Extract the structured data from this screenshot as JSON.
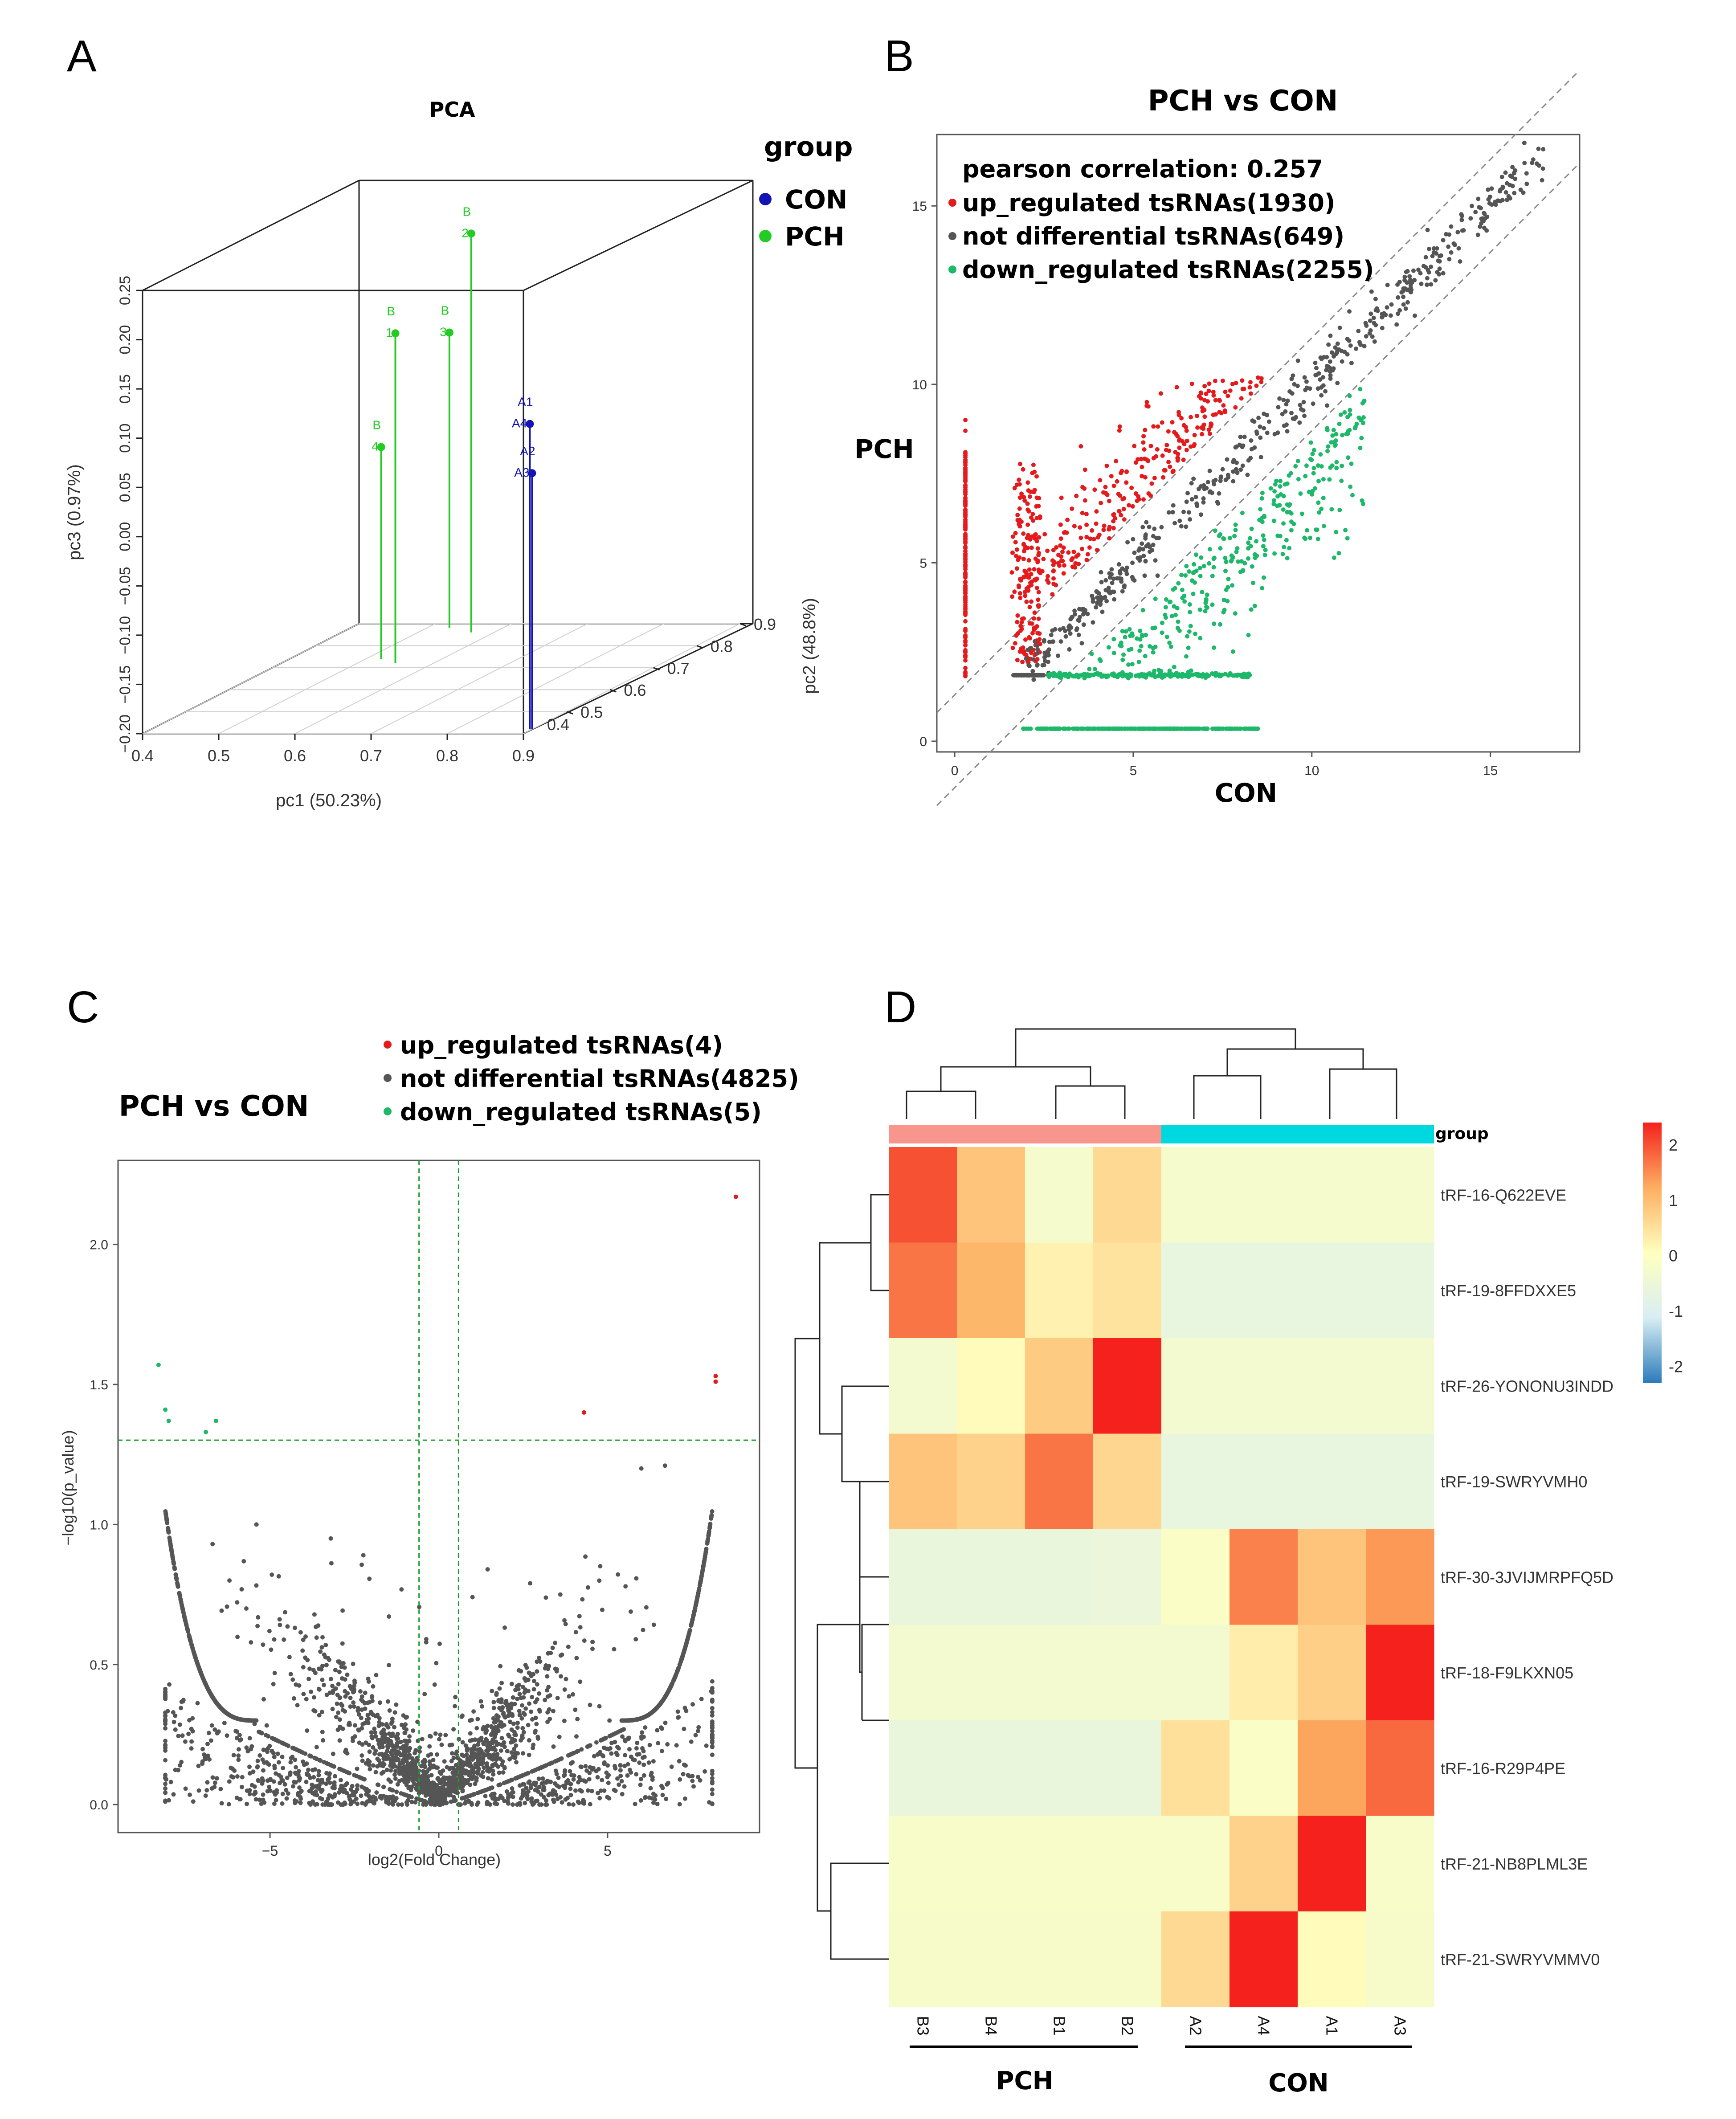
{
  "panels": {
    "a": "A",
    "b": "B",
    "c": "C",
    "d": "D"
  },
  "chart_data": [
    {
      "type": "scatter",
      "kind": "3d-pca",
      "title": "PCA",
      "xlabel": "pc1 (50.23%)",
      "ylabel": "pc2 (48.8%)",
      "zlabel": "pc3 (0.97%)",
      "xlim": [
        0.4,
        0.9
      ],
      "ylim": [
        0.4,
        0.9
      ],
      "zlim": [
        -0.2,
        0.25
      ],
      "xticks": [
        "0.4",
        "0.5",
        "0.6",
        "0.7",
        "0.8",
        "0.9"
      ],
      "yticks": [
        "0.4",
        "0.5",
        "0.6",
        "0.7",
        "0.8",
        "0.9"
      ],
      "zticks": [
        "−0.20",
        "−0.15",
        "−0.10",
        "−0.05",
        "0.00",
        "0.05",
        "0.10",
        "0.15",
        "0.20",
        "0.25"
      ],
      "legend_title": "group",
      "groups": [
        {
          "name": "CON",
          "color": "#1414b4"
        },
        {
          "name": "PCH",
          "color": "#22cc22"
        }
      ],
      "points": [
        {
          "group": "PCH",
          "l1": "B",
          "l2": "2",
          "pc1": 0.57,
          "pc2": 0.86,
          "pc3": 0.205
        },
        {
          "group": "PCH",
          "l1": "B",
          "l2": "1",
          "pc1": 0.55,
          "pc2": 0.72,
          "pc3": 0.135
        },
        {
          "group": "PCH",
          "l1": "B",
          "l2": "3",
          "pc1": 0.53,
          "pc2": 0.88,
          "pc3": 0.1
        },
        {
          "group": "PCH",
          "l1": "B",
          "l2": "4",
          "pc1": 0.52,
          "pc2": 0.74,
          "pc3": 0.015
        },
        {
          "group": "CON",
          "l1": "A1",
          "l2": "A4",
          "pc1": 0.897,
          "pc2": 0.42,
          "pc3": 0.11
        },
        {
          "group": "CON",
          "l1": "A2",
          "l2": "A3",
          "pc1": 0.9,
          "pc2": 0.42,
          "pc3": 0.06
        }
      ]
    },
    {
      "type": "scatter",
      "title": "PCH vs CON",
      "xlabel": "CON",
      "ylabel": "PCH",
      "xlim": [
        -0.5,
        17.5
      ],
      "ylim": [
        -0.3,
        17
      ],
      "xticks": [
        "0",
        "5",
        "10",
        "15"
      ],
      "yticks": [
        "0",
        "5",
        "10",
        "15"
      ],
      "legend": [
        {
          "text": "pearson correlation: 0.257"
        },
        {
          "text": "up_regulated tsRNAs(1930)",
          "color": "#e41a1c"
        },
        {
          "text": "not differential tsRNAs(649)",
          "color": "#555555"
        },
        {
          "text": "down_regulated tsRNAs(2255)",
          "color": "#1db86a"
        }
      ],
      "series": [
        {
          "name": "up_regulated tsRNAs(1930)",
          "color": "#e41a1c",
          "count": 1930
        },
        {
          "name": "not differential tsRNAs(649)",
          "color": "#555555",
          "count": 649
        },
        {
          "name": "down_regulated tsRNAs(2255)",
          "color": "#1db86a",
          "count": 2255
        }
      ]
    },
    {
      "type": "scatter",
      "kind": "volcano",
      "title": "PCH vs CON",
      "xlabel": "log2(Fold Change)",
      "ylabel": "−log10(p_value)",
      "xlim": [
        -9.5,
        9.5
      ],
      "ylim": [
        -0.1,
        2.3
      ],
      "xticks": [
        "−5",
        "0",
        "5"
      ],
      "yticks": [
        "0.0",
        "0.5",
        "1.0",
        "1.5",
        "2.0"
      ],
      "thresholds": {
        "x": [
          -0.585,
          0.585
        ],
        "y": 1.301
      },
      "legend": [
        {
          "text": "up_regulated tsRNAs(4)",
          "color": "#e41a1c"
        },
        {
          "text": "not differential tsRNAs(4825)",
          "color": "#555555"
        },
        {
          "text": "down_regulated tsRNAs(5)",
          "color": "#1db86a"
        }
      ],
      "up_points": [
        [
          8.8,
          2.17
        ],
        [
          8.2,
          1.53
        ],
        [
          8.2,
          1.51
        ],
        [
          4.3,
          1.4
        ]
      ],
      "down_points": [
        [
          -8.3,
          1.57
        ],
        [
          -8.1,
          1.41
        ],
        [
          -8.0,
          1.37
        ],
        [
          -6.6,
          1.37
        ],
        [
          -6.9,
          1.33
        ]
      ]
    },
    {
      "type": "heatmap",
      "columns": [
        "B3",
        "B4",
        "B1",
        "B2",
        "A2",
        "A4",
        "A1",
        "A3"
      ],
      "column_groups": [
        {
          "name": "PCH",
          "span": [
            0,
            3
          ],
          "color": "#f8968e"
        },
        {
          "name": "CON",
          "span": [
            4,
            7
          ],
          "color": "#00d8df"
        }
      ],
      "annotation_label": "group",
      "rows": [
        "tRF-16-Q622EVE",
        "tRF-19-8FFDXXE5",
        "tRF-26-YONONU3INDD",
        "tRF-19-SWRYVMH0",
        "tRF-30-3JVIJMRPFQ5D",
        "tRF-18-F9LKXN05",
        "tRF-16-R29P4PE",
        "tRF-21-NB8PLML3E",
        "tRF-21-SWRYVMMV0"
      ],
      "values": [
        [
          2.0,
          0.9,
          -0.25,
          0.6,
          -0.25,
          -0.25,
          -0.25,
          -0.25
        ],
        [
          1.7,
          1.1,
          0.25,
          0.45,
          -0.65,
          -0.65,
          -0.65,
          -0.65
        ],
        [
          -0.3,
          0.1,
          0.8,
          2.4,
          -0.3,
          -0.3,
          -0.3,
          -0.3
        ],
        [
          0.9,
          0.7,
          1.7,
          0.65,
          -0.65,
          -0.65,
          -0.65,
          -0.65
        ],
        [
          -0.6,
          -0.6,
          -0.6,
          -0.55,
          -0.1,
          1.6,
          0.9,
          1.4
        ],
        [
          -0.3,
          -0.3,
          -0.3,
          -0.3,
          -0.3,
          0.3,
          0.75,
          2.4
        ],
        [
          -0.6,
          -0.6,
          -0.6,
          -0.6,
          0.5,
          -0.1,
          1.3,
          1.8
        ],
        [
          -0.15,
          -0.15,
          -0.15,
          -0.15,
          -0.15,
          0.7,
          2.4,
          -0.15
        ],
        [
          -0.2,
          -0.2,
          -0.2,
          -0.2,
          0.6,
          2.4,
          0.1,
          -0.2
        ]
      ],
      "colorbar": {
        "min": -2.3,
        "max": 2.4,
        "ticks": [
          "2",
          "1",
          "0",
          "-1",
          "-2"
        ],
        "tick_values": [
          2,
          1,
          0,
          -1,
          -2
        ]
      },
      "colors": [
        "#2b7bba",
        "#d8eef4",
        "#ffffbf",
        "#fdae61",
        "#f4211d"
      ],
      "bottom_groups": [
        "PCH",
        "CON"
      ]
    }
  ]
}
